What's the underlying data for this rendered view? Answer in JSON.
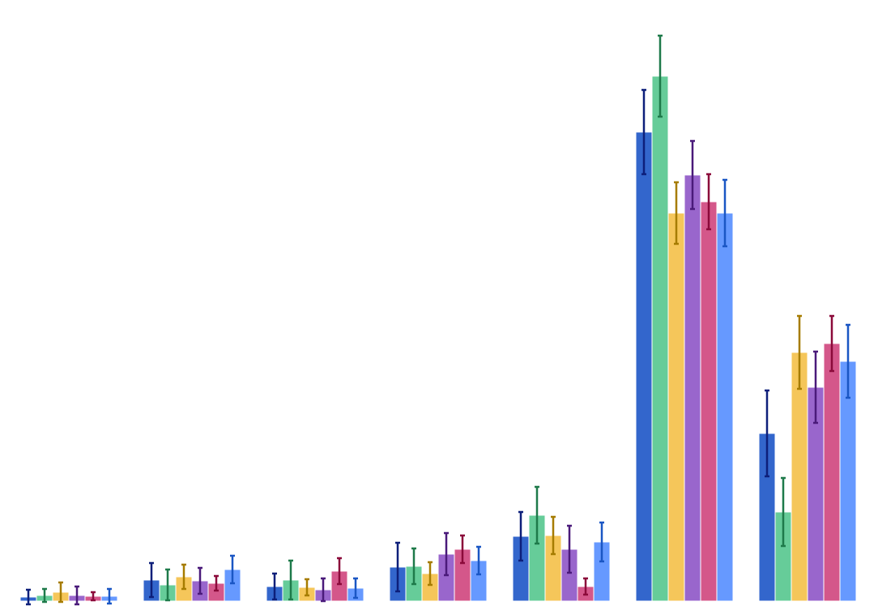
{
  "chart_data": {
    "type": "bar",
    "categories": [
      null,
      null,
      null,
      null,
      null,
      null,
      null
    ],
    "ylim": [
      0,
      700
    ],
    "series": [
      {
        "color": "#3366cc",
        "error_color": "#0d1f7a",
        "values": [
          5,
          26,
          18,
          42,
          80,
          579,
          207
        ],
        "errors": [
          9,
          21,
          16,
          30,
          30,
          52,
          53
        ]
      },
      {
        "color": "#66cc99",
        "error_color": "#1e7a4a",
        "values": [
          7,
          20,
          26,
          43,
          106,
          648,
          110
        ],
        "errors": [
          8,
          19,
          24,
          22,
          35,
          50,
          42
        ]
      },
      {
        "color": "#f5c65a",
        "error_color": "#a67c00",
        "values": [
          11,
          30,
          17,
          34,
          81,
          479,
          307
        ],
        "errors": [
          12,
          15,
          10,
          14,
          23,
          38,
          45
        ]
      },
      {
        "color": "#9966cc",
        "error_color": "#4a1a7a",
        "values": [
          7,
          25,
          14,
          58,
          64,
          526,
          264
        ],
        "errors": [
          11,
          16,
          14,
          26,
          29,
          42,
          44
        ]
      },
      {
        "color": "#d4578a",
        "error_color": "#8b0a3a",
        "values": [
          6,
          22,
          37,
          64,
          18,
          493,
          318
        ],
        "errors": [
          5,
          9,
          16,
          17,
          10,
          34,
          34
        ]
      },
      {
        "color": "#6699ff",
        "error_color": "#1a56c4",
        "values": [
          6,
          39,
          16,
          50,
          73,
          479,
          296
        ],
        "errors": [
          9,
          17,
          12,
          17,
          24,
          41,
          45
        ]
      }
    ]
  }
}
